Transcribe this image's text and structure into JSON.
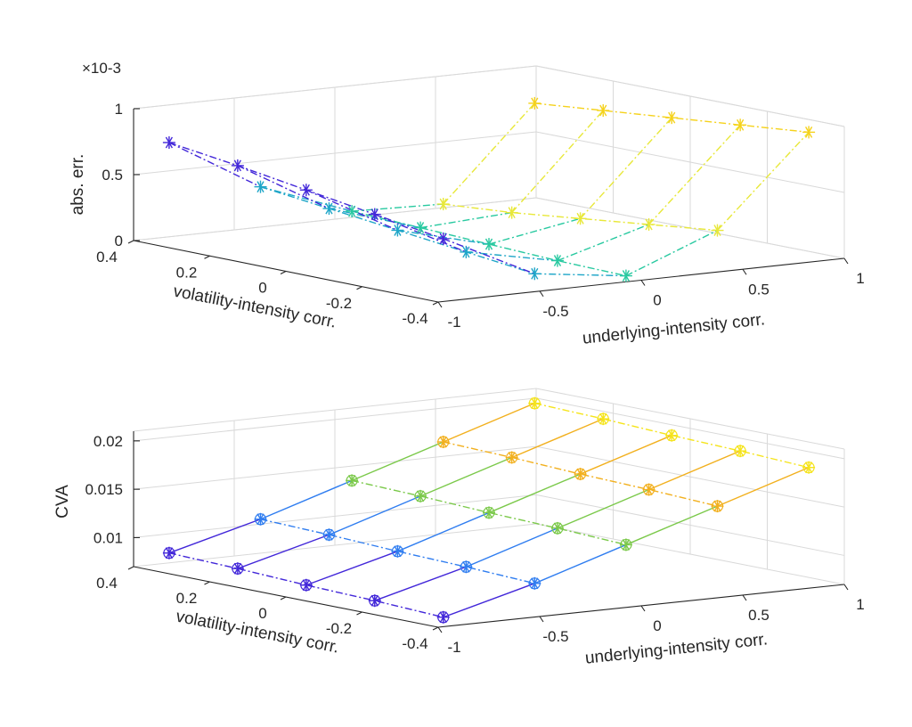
{
  "chart_data": [
    {
      "type": "surface3d",
      "panel": "top",
      "zlabel": "abs. err.",
      "zscale": "×10-3",
      "xlabel": "volatility-intensity corr.",
      "ylabel": "underlying-intensity corr.",
      "xlim": [
        -0.4,
        0.4
      ],
      "ylim": [
        -1,
        1
      ],
      "zlim": [
        0,
        0.001
      ],
      "x_ticks": [
        "0.4",
        "0.2",
        "0",
        "-0.2",
        "-0.4"
      ],
      "y_ticks": [
        "-1",
        "-0.5",
        "0",
        "0.5",
        "1"
      ],
      "z_ticks": [
        "0",
        "0.5",
        "1"
      ],
      "grid": true,
      "colormap": [
        "#4227d9",
        "#1fa6c8",
        "#28c9a0",
        "#e8e83a",
        "#f5d21b"
      ],
      "series": [
        {
          "rho_u": -0.9,
          "x": [
            0.36,
            0.18,
            0,
            -0.18,
            -0.36
          ],
          "z": [
            0.00075,
            0.00068,
            0.0006,
            0.00052,
            0.00044
          ]
        },
        {
          "rho_u": -0.45,
          "x": [
            0.36,
            0.18,
            0,
            -0.18,
            -0.36
          ],
          "z": [
            0.00034,
            0.00028,
            0.00022,
            0.00016,
            0.0001
          ]
        },
        {
          "rho_u": 0,
          "x": [
            0.36,
            0.18,
            0,
            -0.18,
            -0.36
          ],
          "z": [
            8e-05,
            6e-05,
            4e-05,
            2e-05,
            1e-05
          ]
        },
        {
          "rho_u": 0.45,
          "x": [
            0.36,
            0.18,
            0,
            -0.18,
            -0.36
          ],
          "z": [
            6e-05,
            0.0001,
            0.00016,
            0.00022,
            0.00028
          ]
        },
        {
          "rho_u": 0.9,
          "x": [
            0.36,
            0.18,
            0,
            -0.18,
            -0.36
          ],
          "z": [
            0.00075,
            0.0008,
            0.00085,
            0.0009,
            0.00095
          ]
        }
      ]
    },
    {
      "type": "surface3d",
      "panel": "bottom",
      "zlabel": "CVA",
      "xlabel": "volatility-intensity corr.",
      "ylabel": "underlying-intensity corr.",
      "xlim": [
        -0.4,
        0.4
      ],
      "ylim": [
        -1,
        1
      ],
      "zlim": [
        0.007,
        0.021
      ],
      "x_ticks": [
        "0.4",
        "0.2",
        "0",
        "-0.2",
        "-0.4"
      ],
      "y_ticks": [
        "-1",
        "-0.5",
        "0",
        "0.5",
        "1"
      ],
      "z_ticks": [
        "0.01",
        "0.015",
        "0.02"
      ],
      "grid": true,
      "colormap": [
        "#4227d9",
        "#2f7df0",
        "#1fb8c8",
        "#7bc94a",
        "#f2b01e",
        "#f5e41b"
      ],
      "series": [
        {
          "rho_u": -0.9,
          "x": [
            0.36,
            0.18,
            0,
            -0.18,
            -0.36
          ],
          "z": [
            0.0085,
            0.0083,
            0.008,
            0.0078,
            0.0075
          ]
        },
        {
          "rho_u": -0.45,
          "x": [
            0.36,
            0.18,
            0,
            -0.18,
            -0.36
          ],
          "z": [
            0.011,
            0.0108,
            0.0105,
            0.0103,
            0.01
          ]
        },
        {
          "rho_u": 0,
          "x": [
            0.36,
            0.18,
            0,
            -0.18,
            -0.36
          ],
          "z": [
            0.014,
            0.0138,
            0.0135,
            0.0133,
            0.013
          ]
        },
        {
          "rho_u": 0.45,
          "x": [
            0.36,
            0.18,
            0,
            -0.18,
            -0.36
          ],
          "z": [
            0.017,
            0.0168,
            0.0165,
            0.0163,
            0.016
          ]
        },
        {
          "rho_u": 0.9,
          "x": [
            0.36,
            0.18,
            0,
            -0.18,
            -0.36
          ],
          "z": [
            0.02,
            0.0198,
            0.0195,
            0.0193,
            0.019
          ]
        }
      ]
    }
  ]
}
